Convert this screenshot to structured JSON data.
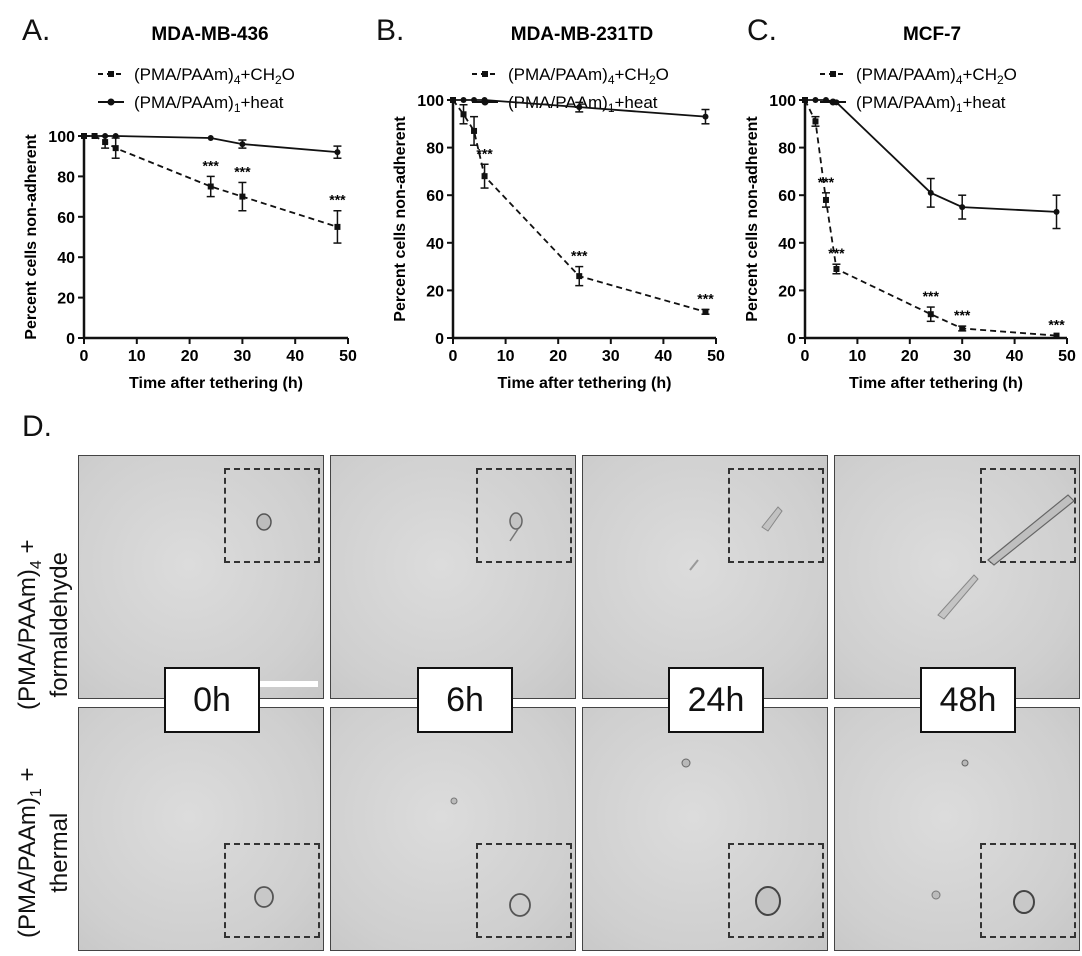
{
  "panels": {
    "a": {
      "letter": "A.",
      "title": "MDA-MB-436"
    },
    "b": {
      "letter": "B.",
      "title": "MDA-MB-231TD"
    },
    "c": {
      "letter": "C.",
      "title": "MCF-7"
    },
    "d": {
      "letter": "D."
    }
  },
  "legend": {
    "series1_main": "(PMA/PAAm)",
    "series1_sub": "4",
    "series1_rest": "+CH",
    "series1_sub2": "2",
    "series1_end": "O",
    "series2_main": "(PMA/PAAm)",
    "series2_sub": "1",
    "series2_rest": "+heat"
  },
  "axes": {
    "xlabel": "Time after tethering (h)",
    "ylabel": "Percent cells non-adherent",
    "xticks": [
      "0",
      "10",
      "20",
      "30",
      "40",
      "50"
    ],
    "yticks": [
      "0",
      "20",
      "40",
      "60",
      "80",
      "100"
    ]
  },
  "significance_mark": "***",
  "chart_data": [
    {
      "type": "line",
      "title": "MDA-MB-436",
      "xlabel": "Time after tethering (h)",
      "ylabel": "Percent cells non-adherent",
      "xlim": [
        0,
        50
      ],
      "ylim": [
        0,
        100
      ],
      "series": [
        {
          "name": "(PMA/PAAm)4+CH2O",
          "style": "dashed",
          "marker": "square",
          "x": [
            0,
            2,
            4,
            6,
            24,
            30,
            48
          ],
          "y": [
            100,
            100,
            97,
            94,
            75,
            70,
            55
          ],
          "err": [
            0,
            0,
            3,
            5,
            5,
            7,
            8
          ],
          "significant": [
            24,
            30,
            48
          ]
        },
        {
          "name": "(PMA/PAAm)1+heat",
          "style": "solid",
          "marker": "circle",
          "x": [
            0,
            2,
            4,
            6,
            24,
            30,
            48
          ],
          "y": [
            100,
            100,
            100,
            100,
            99,
            96,
            92
          ],
          "err": [
            0,
            0,
            0,
            0,
            0,
            2,
            3
          ]
        }
      ]
    },
    {
      "type": "line",
      "title": "MDA-MB-231TD",
      "xlabel": "Time after tethering (h)",
      "ylabel": "Percent cells non-adherent",
      "xlim": [
        0,
        50
      ],
      "ylim": [
        0,
        100
      ],
      "series": [
        {
          "name": "(PMA/PAAm)4+CH2O",
          "style": "dashed",
          "marker": "square",
          "x": [
            0,
            2,
            4,
            6,
            24,
            48
          ],
          "y": [
            100,
            94,
            87,
            68,
            26,
            11
          ],
          "err": [
            0,
            4,
            6,
            5,
            4,
            1
          ],
          "significant": [
            6,
            24,
            48
          ]
        },
        {
          "name": "(PMA/PAAm)1+heat",
          "style": "solid",
          "marker": "circle",
          "x": [
            0,
            2,
            4,
            6,
            24,
            48
          ],
          "y": [
            100,
            100,
            100,
            100,
            97,
            93
          ],
          "err": [
            0,
            0,
            0,
            0,
            2,
            3
          ]
        }
      ]
    },
    {
      "type": "line",
      "title": "MCF-7",
      "xlabel": "Time after tethering (h)",
      "ylabel": "Percent cells non-adherent",
      "xlim": [
        0,
        50
      ],
      "ylim": [
        0,
        100
      ],
      "series": [
        {
          "name": "(PMA/PAAm)4+CH2O",
          "style": "dashed",
          "marker": "square",
          "x": [
            0,
            2,
            4,
            6,
            24,
            30,
            48
          ],
          "y": [
            100,
            91,
            58,
            29,
            10,
            4,
            1
          ],
          "err": [
            0,
            2,
            3,
            2,
            3,
            1,
            0
          ],
          "significant": [
            4,
            6,
            24,
            30,
            48
          ]
        },
        {
          "name": "(PMA/PAAm)1+heat",
          "style": "solid",
          "marker": "circle",
          "x": [
            0,
            2,
            4,
            6,
            24,
            30,
            48
          ],
          "y": [
            100,
            100,
            100,
            99,
            61,
            55,
            53
          ],
          "err": [
            0,
            0,
            0,
            0,
            6,
            5,
            7
          ]
        }
      ]
    }
  ],
  "micrographs": {
    "time_labels": [
      "0h",
      "6h",
      "24h",
      "48h"
    ],
    "row1_label": {
      "main": "(PMA/PAAm)",
      "sub": "4",
      "tail": " +",
      "line2": "formaldehyde"
    },
    "row2_label": {
      "main": "(PMA/PAAm)",
      "sub": "1",
      "tail": " +",
      "line2": "thermal"
    }
  }
}
